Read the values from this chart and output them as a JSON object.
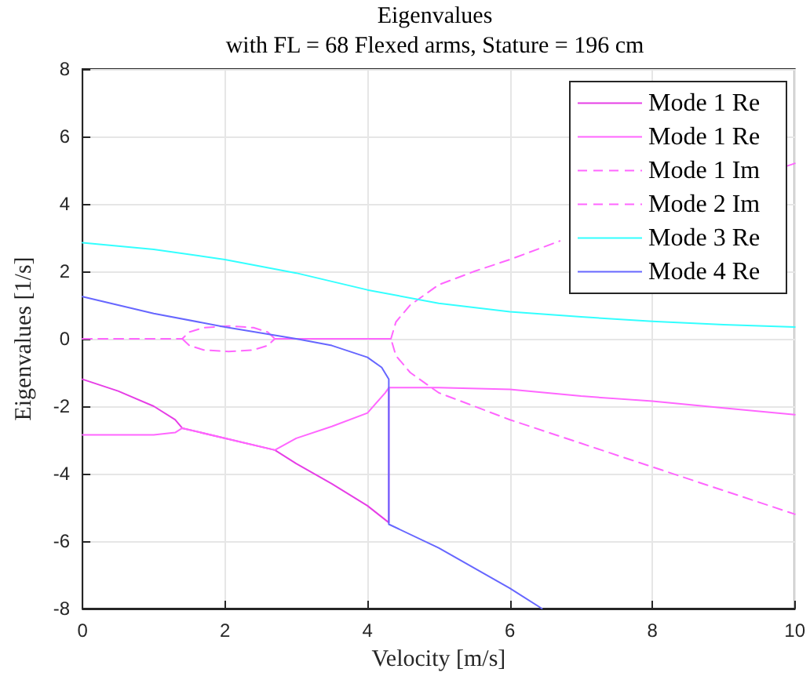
{
  "chart_data": {
    "type": "line",
    "title": "Eigenvalues",
    "subtitle": "with FL = 68 Flexed arms, Stature = 196 cm",
    "xlabel": "Velocity [m/s]",
    "ylabel": "Eigenvalues [1/s]",
    "xlim": [
      0,
      10
    ],
    "xticks": [
      0,
      2,
      4,
      6,
      8,
      10
    ],
    "ylim": [
      -8,
      8
    ],
    "yticks": [
      -8,
      -6,
      -4,
      -2,
      0,
      2,
      4,
      6,
      8
    ],
    "grid": true,
    "legend": "top right",
    "marker": "none",
    "series": [
      {
        "name": "Mode 1 Re",
        "color": "#e63ee6",
        "line_style": "solid",
        "x": [
          0,
          0.5,
          1,
          1.3,
          1.4,
          2.7,
          3,
          3.5,
          4,
          4.3,
          4.3
        ],
        "values": [
          -1.2,
          -1.55,
          -2.0,
          -2.4,
          -2.65,
          -3.3,
          -3.7,
          -4.3,
          -4.95,
          -5.45,
          -1.45
        ]
      },
      {
        "name": "Mode 1 Re",
        "color": "#ff66ff",
        "line_style": "solid",
        "x": [
          0,
          1,
          1.3,
          1.4,
          2.7,
          3,
          3.5,
          4,
          4.25,
          4.3,
          5,
          6,
          7,
          8,
          9,
          10
        ],
        "values": [
          -2.85,
          -2.85,
          -2.78,
          -2.65,
          -3.3,
          -2.95,
          -2.6,
          -2.2,
          -1.6,
          -1.45,
          -1.45,
          -1.5,
          -1.7,
          -1.85,
          -2.05,
          -2.25
        ]
      },
      {
        "name": "Mode 1 Im",
        "color": "#ff66ff",
        "line_style": "dashed",
        "x": [
          0,
          1.4,
          1.5,
          1.7,
          2.05,
          2.4,
          2.6,
          2.7,
          4.33,
          4.4,
          4.6,
          5,
          5.5,
          6,
          6.7,
          8,
          9.9,
          10
        ],
        "values": [
          0,
          0,
          0.2,
          0.33,
          0.38,
          0.33,
          0.2,
          0,
          0,
          0.5,
          1.0,
          1.6,
          2.0,
          2.35,
          2.9,
          null,
          5.13,
          5.2
        ]
      },
      {
        "name": "Mode 2 Im",
        "color": "#ff66ff",
        "line_style": "dashed",
        "x": [
          1.4,
          1.5,
          1.7,
          2.05,
          2.4,
          2.6,
          2.7,
          4.33,
          4.4,
          4.6,
          5,
          5.5,
          6,
          7,
          8,
          9,
          10
        ],
        "values": [
          0,
          -0.2,
          -0.33,
          -0.38,
          -0.33,
          -0.2,
          0,
          0,
          -0.5,
          -1.0,
          -1.6,
          -2.0,
          -2.4,
          -3.1,
          -3.8,
          -4.5,
          -5.2
        ]
      },
      {
        "name": "Mode 3 Re",
        "color": "#33ffff",
        "line_style": "solid",
        "x": [
          0,
          1,
          2,
          3,
          4,
          5,
          6,
          7,
          8,
          9,
          10
        ],
        "values": [
          2.85,
          2.65,
          2.35,
          1.95,
          1.45,
          1.05,
          0.8,
          0.65,
          0.52,
          0.42,
          0.35
        ]
      },
      {
        "name": "Mode 4 Re",
        "color": "#6666ff",
        "line_style": "solid",
        "x": [
          0,
          1,
          2,
          3,
          3.5,
          4,
          4.2,
          4.3,
          4.3,
          5,
          6,
          6.45
        ],
        "values": [
          1.25,
          0.75,
          0.35,
          0.0,
          -0.2,
          -0.55,
          -0.85,
          -1.2,
          -5.5,
          -6.2,
          -7.4,
          -8
        ]
      }
    ]
  }
}
